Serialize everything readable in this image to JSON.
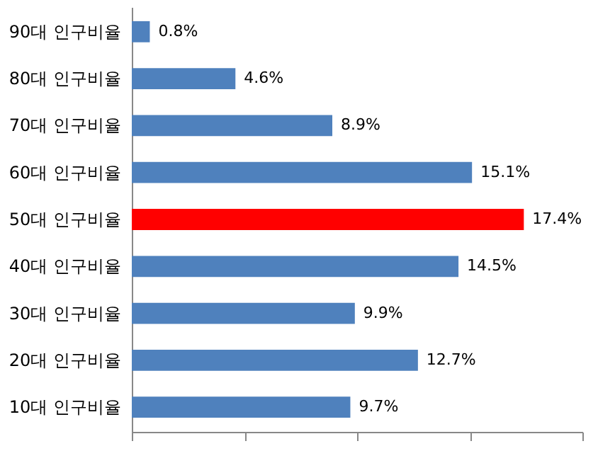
{
  "chart_data": {
    "type": "bar",
    "orientation": "horizontal",
    "categories": [
      "90대 인구비율",
      "80대 인구비율",
      "70대 인구비율",
      "60대 인구비율",
      "50대 인구비율",
      "40대 인구비율",
      "30대 인구비율",
      "20대 인구비율",
      "10대 인구비율"
    ],
    "values": [
      0.8,
      4.6,
      8.9,
      15.1,
      17.4,
      14.5,
      9.9,
      12.7,
      9.7
    ],
    "value_labels": [
      "0.8%",
      "4.6%",
      "8.9%",
      "15.1%",
      "17.4%",
      "14.5%",
      "9.9%",
      "12.7%",
      "9.7%"
    ],
    "colors": [
      "#4f81bd",
      "#4f81bd",
      "#4f81bd",
      "#4f81bd",
      "#ff0000",
      "#4f81bd",
      "#4f81bd",
      "#4f81bd",
      "#4f81bd"
    ],
    "xlim": [
      0,
      20
    ],
    "xticks": [
      {
        "value": 0,
        "label": null
      },
      {
        "value": 5,
        "label": null
      },
      {
        "value": 10,
        "label": null
      },
      {
        "value": 15,
        "label": null
      },
      {
        "value": 20,
        "label": null
      }
    ],
    "tick_labels": "y",
    "grid": false
  }
}
